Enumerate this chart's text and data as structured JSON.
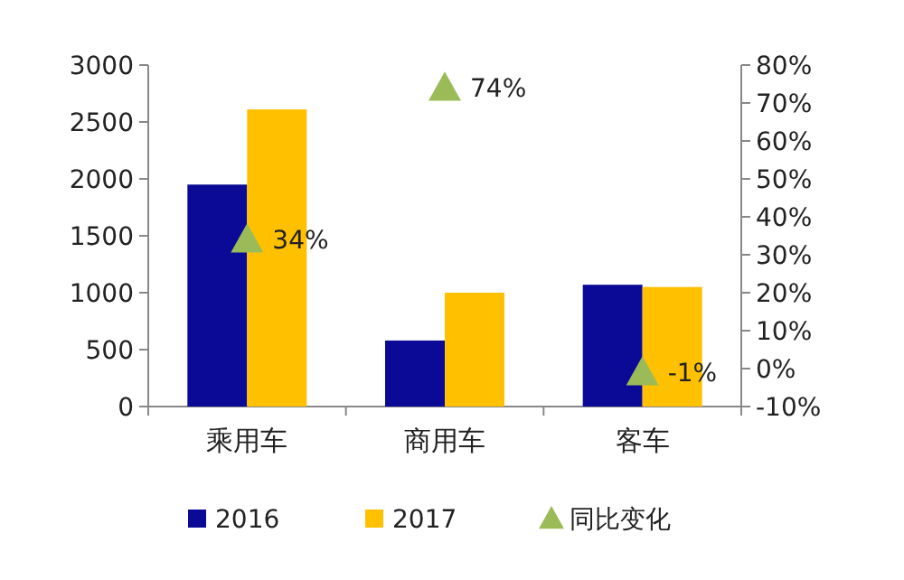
{
  "chart_data": {
    "type": "bar",
    "categories": [
      "乘用车",
      "商用车",
      "客车"
    ],
    "series": [
      {
        "name": "2016",
        "color": "#0a0a96",
        "values": [
          1950,
          580,
          1070
        ]
      },
      {
        "name": "2017",
        "color": "#ffc000",
        "values": [
          2610,
          1000,
          1050
        ]
      },
      {
        "name": "同比变化",
        "type": "scatter",
        "axis": "y2",
        "marker": "triangle",
        "color": "#9bbb59",
        "values": [
          34,
          74,
          -1
        ],
        "value_labels": [
          "34%",
          "74%",
          "-1%"
        ]
      }
    ],
    "ylim": [
      0,
      3000
    ],
    "yticks": [
      0,
      500,
      1000,
      1500,
      2000,
      2500,
      3000
    ],
    "y2lim": [
      -10,
      80
    ],
    "y2ticks": [
      {
        "value": -10,
        "label": "-10%"
      },
      {
        "value": 0,
        "label": "0%"
      },
      {
        "value": 10,
        "label": "10%"
      },
      {
        "value": 20,
        "label": "20%"
      },
      {
        "value": 30,
        "label": "30%"
      },
      {
        "value": 40,
        "label": "40%"
      },
      {
        "value": 50,
        "label": "50%"
      },
      {
        "value": 60,
        "label": "60%"
      },
      {
        "value": 70,
        "label": "70%"
      },
      {
        "value": 80,
        "label": "80%"
      }
    ],
    "legend": "bottom",
    "grid": false
  }
}
